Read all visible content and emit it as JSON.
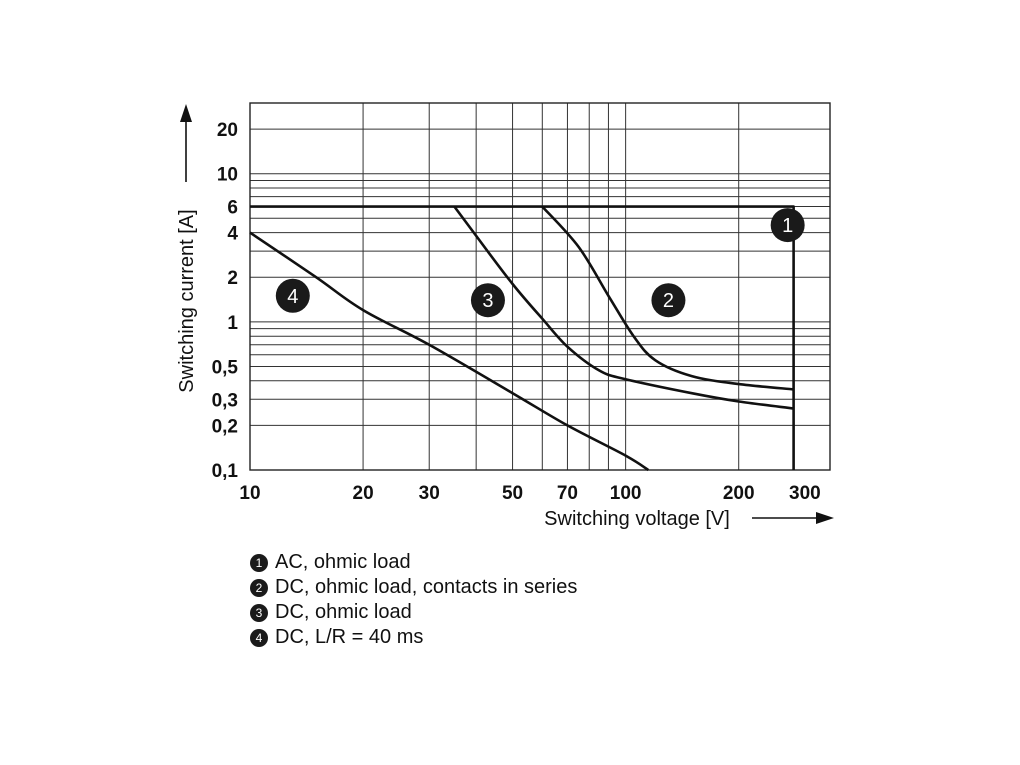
{
  "chart_data": {
    "type": "line",
    "x_scale": "log",
    "y_scale": "log",
    "xlabel": "Switching voltage [V]",
    "ylabel": "Switching current [A]",
    "xlim": [
      10,
      350
    ],
    "ylim": [
      0.1,
      30
    ],
    "x_ticks": [
      {
        "value": 10,
        "label": "10"
      },
      {
        "value": 20,
        "label": "20"
      },
      {
        "value": 30,
        "label": "30"
      },
      {
        "value": 50,
        "label": "50"
      },
      {
        "value": 70,
        "label": "70"
      },
      {
        "value": 100,
        "label": "100"
      },
      {
        "value": 200,
        "label": "200"
      },
      {
        "value": 300,
        "label": "300"
      }
    ],
    "y_ticks": [
      {
        "value": 0.1,
        "label": "0,1"
      },
      {
        "value": 0.2,
        "label": "0,2"
      },
      {
        "value": 0.3,
        "label": "0,3"
      },
      {
        "value": 0.5,
        "label": "0,5"
      },
      {
        "value": 1,
        "label": "1"
      },
      {
        "value": 2,
        "label": "2"
      },
      {
        "value": 4,
        "label": "4"
      },
      {
        "value": 6,
        "label": "6"
      },
      {
        "value": 10,
        "label": "10"
      },
      {
        "value": 20,
        "label": "20"
      }
    ],
    "grid": true,
    "x_grid": [
      20,
      30,
      40,
      50,
      60,
      70,
      80,
      90,
      100,
      200
    ],
    "y_grid": [
      0.2,
      0.3,
      0.4,
      0.5,
      0.6,
      0.7,
      0.8,
      0.9,
      1,
      2,
      3,
      4,
      5,
      6,
      7,
      8,
      9,
      10,
      20
    ],
    "series": [
      {
        "id": "1",
        "marker_label": "1",
        "marker_at": [
          270,
          4.5
        ],
        "points": [
          [
            10,
            6
          ],
          [
            280,
            6
          ],
          [
            280,
            0.1
          ]
        ]
      },
      {
        "id": "2",
        "marker_label": "2",
        "marker_at": [
          130,
          1.4
        ],
        "points": [
          [
            60,
            6
          ],
          [
            75,
            3.2
          ],
          [
            90,
            1.5
          ],
          [
            105,
            0.8
          ],
          [
            120,
            0.55
          ],
          [
            150,
            0.43
          ],
          [
            200,
            0.38
          ],
          [
            280,
            0.35
          ]
        ]
      },
      {
        "id": "3",
        "marker_label": "3",
        "marker_at": [
          43,
          1.4
        ],
        "points": [
          [
            35,
            6
          ],
          [
            40,
            3.8
          ],
          [
            50,
            1.8
          ],
          [
            60,
            1.05
          ],
          [
            70,
            0.68
          ],
          [
            85,
            0.47
          ],
          [
            100,
            0.41
          ],
          [
            150,
            0.33
          ],
          [
            200,
            0.29
          ],
          [
            280,
            0.26
          ]
        ]
      },
      {
        "id": "4",
        "marker_label": "4",
        "marker_at": [
          13,
          1.5
        ],
        "points": [
          [
            10,
            4
          ],
          [
            15,
            2
          ],
          [
            20,
            1.2
          ],
          [
            30,
            0.7
          ],
          [
            50,
            0.33
          ],
          [
            70,
            0.2
          ],
          [
            100,
            0.125
          ],
          [
            115,
            0.1
          ]
        ]
      }
    ],
    "legend": [
      {
        "num": "1",
        "text": "AC, ohmic load"
      },
      {
        "num": "2",
        "text": "DC, ohmic load, contacts in series"
      },
      {
        "num": "3",
        "text": "DC, ohmic load"
      },
      {
        "num": "4",
        "text": "DC, L/R = 40 ms"
      }
    ]
  }
}
